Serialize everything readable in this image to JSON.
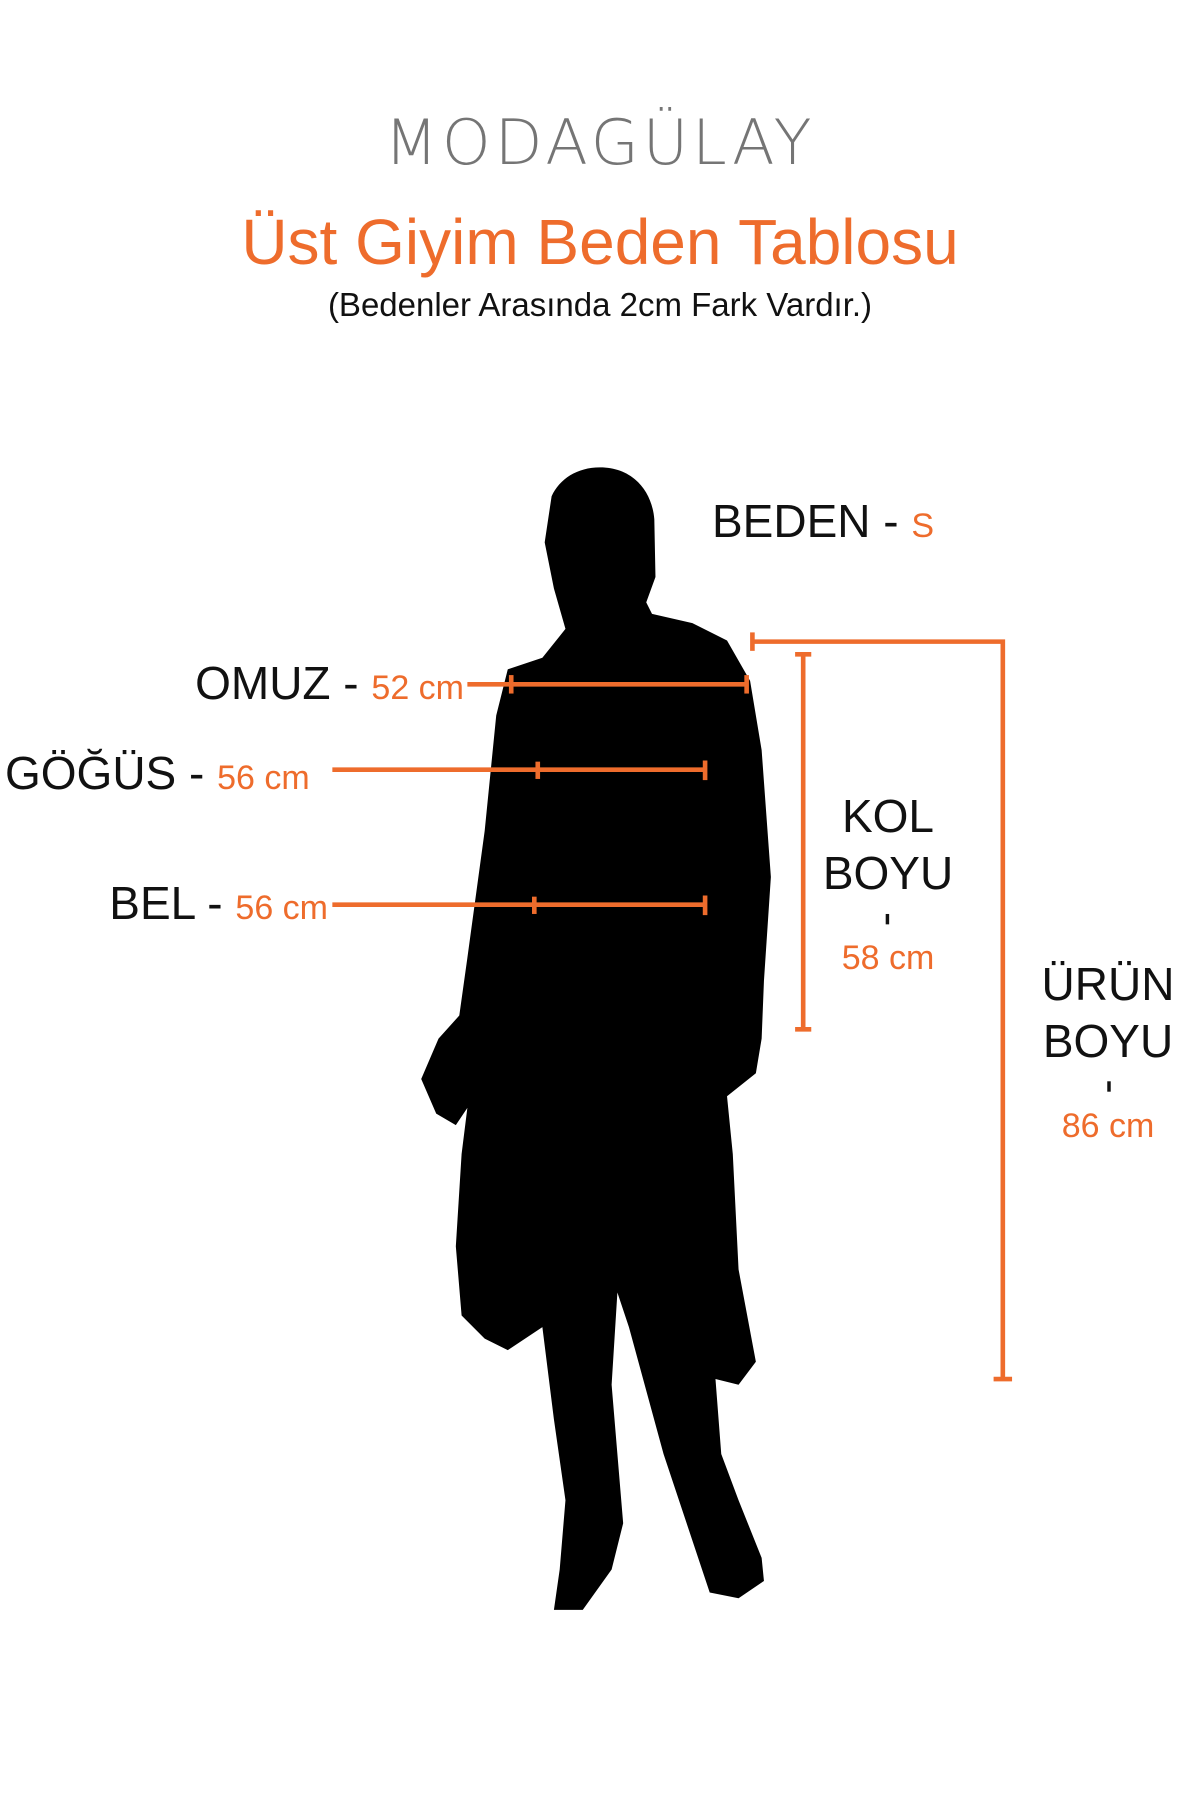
{
  "brand": {
    "logo_text": "MODAGÜLAY"
  },
  "header": {
    "title": "Üst Giyim Beden Tablosu",
    "subtitle": "(Bedenler Arasında 2cm Fark Vardır.)"
  },
  "size": {
    "label": "BEDEN -",
    "value": "S"
  },
  "measurements": {
    "omuz": {
      "label": "OMUZ -",
      "value": "52 cm"
    },
    "gogus": {
      "label": "GÖĞÜS -",
      "value": "56 cm"
    },
    "bel": {
      "label": "BEL -",
      "value": "56 cm"
    },
    "kol_boyu": {
      "label_line1": "KOL",
      "label_line2": "BOYU",
      "value": "58 cm"
    },
    "urun_boyu": {
      "label_line1": "ÜRÜN",
      "label_line2": "BOYU",
      "value": "86 cm"
    }
  },
  "colors": {
    "accent": "#ee6c2c",
    "logo": "#757575",
    "silhouette": "#000000"
  }
}
